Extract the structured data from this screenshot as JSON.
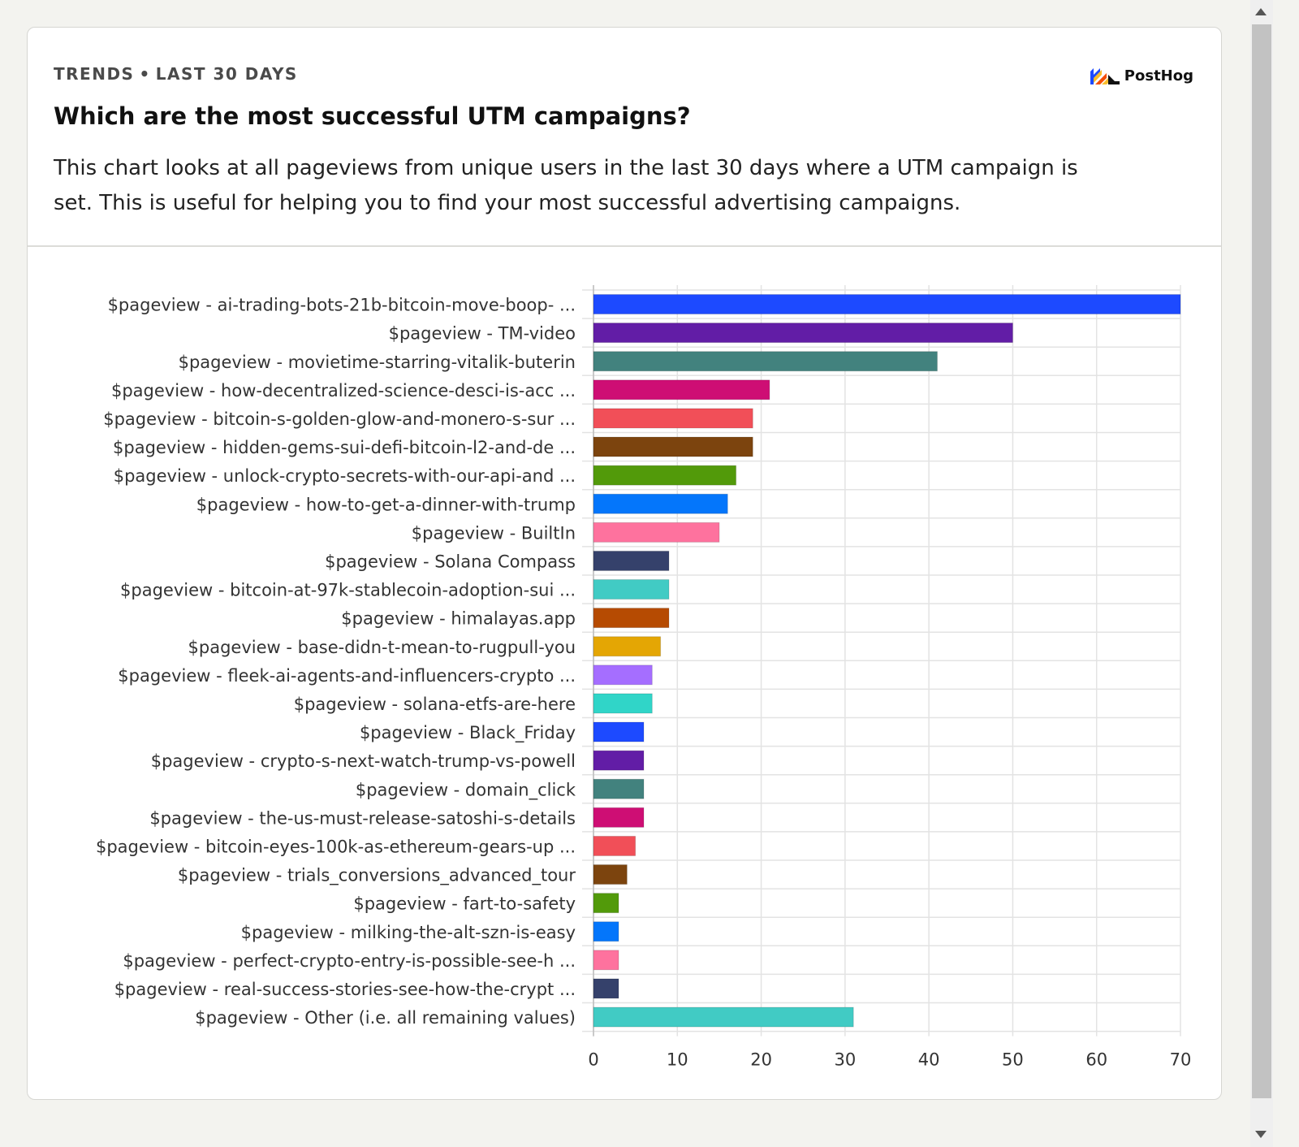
{
  "card": {
    "eyebrow_left": "TRENDS",
    "eyebrow_sep": "•",
    "eyebrow_right": "LAST 30 DAYS",
    "logo_text": "PostHog",
    "logo_icon": "posthog-hedgehog-logo",
    "title": "Which are the most successful UTM campaigns?",
    "description": "This chart looks at all pageviews from unique users in the last 30 days where a UTM campaign is set. This is useful for helping you to find your most successful advertising campaigns."
  },
  "chart_data": {
    "type": "bar",
    "orientation": "horizontal",
    "grid": true,
    "xlim": [
      0,
      70
    ],
    "xticks": [
      0,
      10,
      20,
      30,
      40,
      50,
      60,
      70
    ],
    "categories": [
      "$pageview - ai-trading-bots-21b-bitcoin-move-boop- ...",
      "$pageview - TM-video",
      "$pageview - movietime-starring-vitalik-buterin",
      "$pageview - how-decentralized-science-desci-is-acc ...",
      "$pageview - bitcoin-s-golden-glow-and-monero-s-sur ...",
      "$pageview - hidden-gems-sui-defi-bitcoin-l2-and-de ...",
      "$pageview - unlock-crypto-secrets-with-our-api-and ...",
      "$pageview - how-to-get-a-dinner-with-trump",
      "$pageview - BuiltIn",
      "$pageview - Solana Compass",
      "$pageview - bitcoin-at-97k-stablecoin-adoption-sui ...",
      "$pageview - himalayas.app",
      "$pageview - base-didn-t-mean-to-rugpull-you",
      "$pageview - fleek-ai-agents-and-influencers-crypto ...",
      "$pageview - solana-etfs-are-here",
      "$pageview - Black_Friday",
      "$pageview - crypto-s-next-watch-trump-vs-powell",
      "$pageview - domain_click",
      "$pageview - the-us-must-release-satoshi-s-details",
      "$pageview - bitcoin-eyes-100k-as-ethereum-gears-up ...",
      "$pageview - trials_conversions_advanced_tour",
      "$pageview - fart-to-safety",
      "$pageview - milking-the-alt-szn-is-easy",
      "$pageview - perfect-crypto-entry-is-possible-see-h ...",
      "$pageview - real-success-stories-see-how-the-crypt ...",
      "$pageview - Other (i.e. all remaining values)"
    ],
    "values": [
      70,
      50,
      41,
      21,
      19,
      19,
      17,
      16,
      15,
      9,
      9,
      9,
      8,
      7,
      7,
      6,
      6,
      6,
      6,
      5,
      4,
      3,
      3,
      3,
      3,
      31
    ],
    "colors": [
      "#1d4aff",
      "#621da6",
      "#42827e",
      "#ce0e74",
      "#f14f58",
      "#7c440e",
      "#529a0a",
      "#0476fb",
      "#fe729e",
      "#35416b",
      "#41cbc4",
      "#b64b02",
      "#e4a604",
      "#a56eff",
      "#30d5c8",
      "#1d4aff",
      "#621da6",
      "#42827e",
      "#ce0e74",
      "#f14f58",
      "#7c440e",
      "#529a0a",
      "#0476fb",
      "#fe729e",
      "#35416b",
      "#41cbc4"
    ]
  }
}
